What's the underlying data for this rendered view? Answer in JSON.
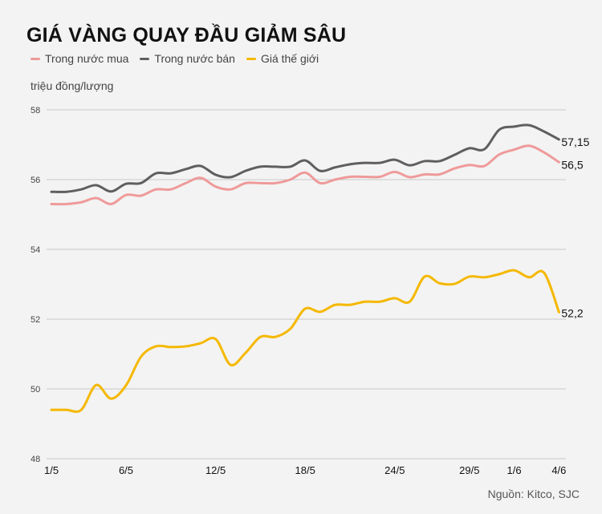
{
  "chart_data": {
    "type": "line",
    "title": "GIÁ VÀNG QUAY ĐẦU GIẢM SÂU",
    "ylabel": "triệu đồng/lượng",
    "source": "Nguồn: Kitco, SJC",
    "ylim": [
      48,
      58
    ],
    "yticks": [
      "48",
      "50",
      "52",
      "54",
      "56",
      "58"
    ],
    "grid": true,
    "legend_position": "top-left",
    "xticks": [
      "1/5",
      "6/5",
      "12/5",
      "18/5",
      "24/5",
      "29/5",
      "1/6",
      "4/6"
    ],
    "xtick_index": [
      0,
      5,
      11,
      17,
      23,
      28,
      31,
      34
    ],
    "series": [
      {
        "name": "Trong nước mua",
        "color": "#ef9a9a",
        "end_label": "56,5",
        "values": [
          55.3,
          55.3,
          55.35,
          55.47,
          55.3,
          55.56,
          55.54,
          55.72,
          55.72,
          55.9,
          56.05,
          55.8,
          55.72,
          55.9,
          55.9,
          55.9,
          56.0,
          56.2,
          55.9,
          56.0,
          56.08,
          56.08,
          56.08,
          56.22,
          56.07,
          56.15,
          56.15,
          56.32,
          56.42,
          56.39,
          56.72,
          56.86,
          56.97,
          56.78,
          56.5
        ]
      },
      {
        "name": "Trong nước bán",
        "color": "#5f5f5f",
        "end_label": "57,15",
        "values": [
          55.65,
          55.65,
          55.72,
          55.84,
          55.66,
          55.88,
          55.9,
          56.18,
          56.18,
          56.3,
          56.39,
          56.14,
          56.07,
          56.25,
          56.37,
          56.37,
          56.37,
          56.55,
          56.25,
          56.35,
          56.44,
          56.48,
          56.48,
          56.57,
          56.41,
          56.53,
          56.53,
          56.71,
          56.9,
          56.87,
          57.43,
          57.52,
          57.56,
          57.38,
          57.15
        ]
      },
      {
        "name": "Giá thế giới",
        "color": "#f5b800",
        "end_label": "52,2",
        "values": [
          49.4,
          49.4,
          49.4,
          50.11,
          49.72,
          50.1,
          50.92,
          51.22,
          51.2,
          51.22,
          51.31,
          51.43,
          50.69,
          51.03,
          51.49,
          51.49,
          51.72,
          52.3,
          52.21,
          52.41,
          52.41,
          52.5,
          52.5,
          52.6,
          52.5,
          53.22,
          53.03,
          53.01,
          53.22,
          53.2,
          53.29,
          53.4,
          53.2,
          53.33,
          52.2
        ]
      }
    ]
  }
}
